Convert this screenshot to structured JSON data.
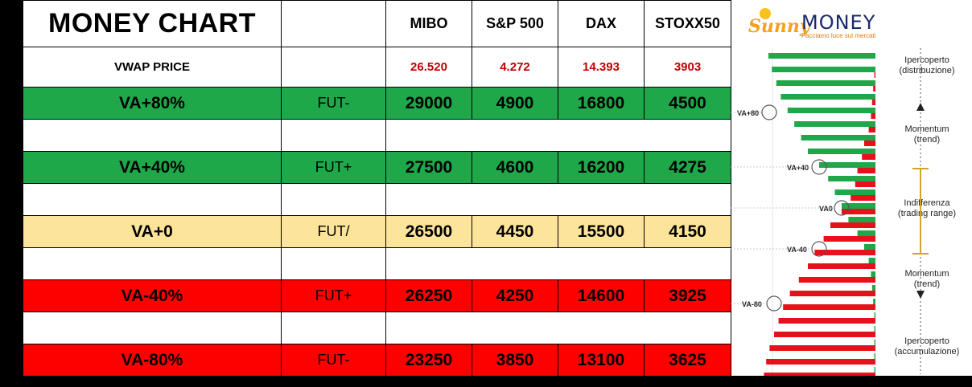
{
  "table": {
    "title": "MONEY CHART",
    "headers": [
      "MIBO",
      "S&P 500",
      "DAX",
      "STOXX50"
    ],
    "vwap": {
      "label": "VWAP PRICE",
      "values": [
        "26.520",
        "4.272",
        "14.393",
        "3903"
      ]
    },
    "rows": [
      {
        "label": "VA+80%",
        "fut": "FUT-",
        "values": [
          "29000",
          "4900",
          "16800",
          "4500"
        ],
        "color": "#1fa84a"
      },
      {
        "label": "VA+40%",
        "fut": "FUT+",
        "values": [
          "27500",
          "4600",
          "16200",
          "4275"
        ],
        "color": "#1fa84a"
      },
      {
        "label": "VA+0",
        "fut": "FUT/",
        "values": [
          "26500",
          "4450",
          "15500",
          "4150"
        ],
        "color": "#fde49b"
      },
      {
        "label": "VA-40%",
        "fut": "FUT+",
        "values": [
          "26250",
          "4250",
          "14600",
          "3925"
        ],
        "color": "#fd0000"
      },
      {
        "label": "VA-80%",
        "fut": "FUT-",
        "values": [
          "23250",
          "3850",
          "13100",
          "3625"
        ],
        "color": "#fd0000"
      }
    ]
  },
  "logo": {
    "sunny": "Sunny",
    "money": "MONEY",
    "tagline": "Facciamo luce sui mercati"
  },
  "chart_data": {
    "type": "bar",
    "title": "",
    "level_labels": [
      "VA+80",
      "VA+40",
      "VA0",
      "VA-40",
      "VA-80"
    ],
    "zones": [
      {
        "line1": "Ipercoperto",
        "line2": "(distribuzione)"
      },
      {
        "line1": "Momentum",
        "line2": "(trend)"
      },
      {
        "line1": "Indifferenza",
        "line2": "(trading range)"
      },
      {
        "line1": "Momentum",
        "line2": "(trend)"
      },
      {
        "line1": "Ipercoperto",
        "line2": "(accumulazione)"
      }
    ],
    "bars_green": [
      0.95,
      0.92,
      0.88,
      0.84,
      0.78,
      0.72,
      0.66,
      0.6,
      0.5,
      0.42,
      0.36,
      0.3,
      0.24,
      0.16,
      0.1,
      0.06,
      0.04,
      0.03,
      0.02,
      0.01,
      0.01,
      0.01,
      0.01,
      0.01
    ],
    "bars_red": [
      0.0,
      0.01,
      0.02,
      0.03,
      0.04,
      0.06,
      0.1,
      0.12,
      0.16,
      0.18,
      0.22,
      0.3,
      0.4,
      0.46,
      0.54,
      0.6,
      0.68,
      0.76,
      0.82,
      0.86,
      0.9,
      0.94,
      0.97,
      0.99
    ],
    "colors": {
      "green": "#1fa84a",
      "red": "#e8101a",
      "accent": "#d4a32a"
    }
  }
}
